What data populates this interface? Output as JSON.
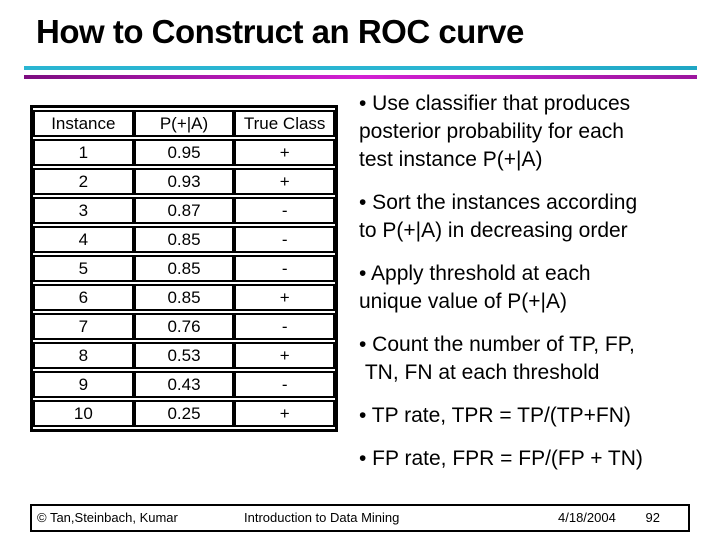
{
  "title": "How to Construct an ROC curve",
  "colors": {
    "cyan_rule": "#2ab5d2",
    "cyan_rule_end": "#1fa6c4",
    "magenta_rule_dark": "#7d0d80",
    "magenta_rule_bright": "#d320d3",
    "magenta_rule_end": "#9c169e",
    "text": "#000000"
  },
  "table": {
    "headers": [
      "Instance",
      "P(+|A)",
      "True Class"
    ],
    "rows": [
      [
        "1",
        "0.95",
        "+"
      ],
      [
        "2",
        "0.93",
        "+"
      ],
      [
        "3",
        "0.87",
        "-"
      ],
      [
        "4",
        "0.85",
        "-"
      ],
      [
        "5",
        "0.85",
        "-"
      ],
      [
        "6",
        "0.85",
        "+"
      ],
      [
        "7",
        "0.76",
        "-"
      ],
      [
        "8",
        "0.53",
        "+"
      ],
      [
        "9",
        "0.43",
        "-"
      ],
      [
        "10",
        "0.25",
        "+"
      ]
    ]
  },
  "bullets": [
    "• Use classifier that produces\nposterior probability for each\ntest instance P(+|A)",
    "• Sort the instances according\nto P(+|A) in decreasing order",
    "• Apply threshold at each\nunique value of P(+|A)",
    "• Count the number of TP, FP,\n TN, FN at each threshold",
    "• TP rate, TPR = TP/(TP+FN)",
    "• FP rate, FPR = FP/(FP + TN)"
  ],
  "footer": {
    "copyright": "© Tan,Steinbach, Kumar",
    "center": "Introduction to Data Mining",
    "date": "4/18/2004",
    "page": "92"
  }
}
